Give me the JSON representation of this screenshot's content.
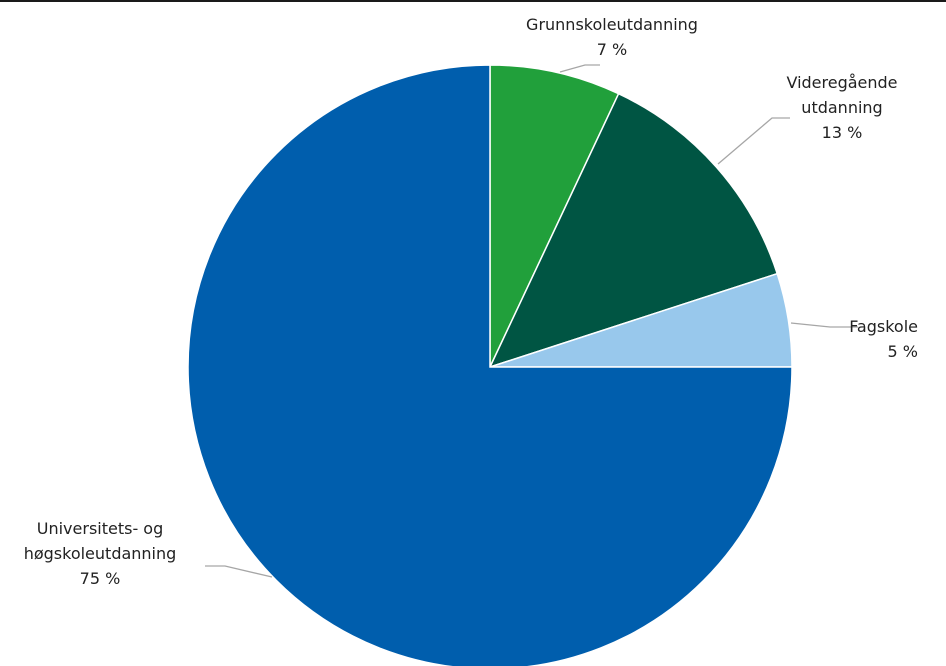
{
  "chart_data": {
    "type": "pie",
    "title": "",
    "slices": [
      {
        "label_lines": [
          "Grunnskoleutdanning"
        ],
        "value": 7,
        "value_text": "7 %",
        "color": "#21a03b"
      },
      {
        "label_lines": [
          "Videregående",
          "utdanning"
        ],
        "value": 13,
        "value_text": "13 %",
        "color": "#005543"
      },
      {
        "label_lines": [
          "Fagskole"
        ],
        "value": 5,
        "value_text": "5 %",
        "color": "#98c8ec"
      },
      {
        "label_lines": [
          "Universitets- og",
          "høgskoleutdanning"
        ],
        "value": 75,
        "value_text": "75 %",
        "color": "#005ead"
      }
    ],
    "start_angle": "12 o'clock",
    "direction": "clockwise",
    "leader_line_color": "#a6a6a6"
  }
}
